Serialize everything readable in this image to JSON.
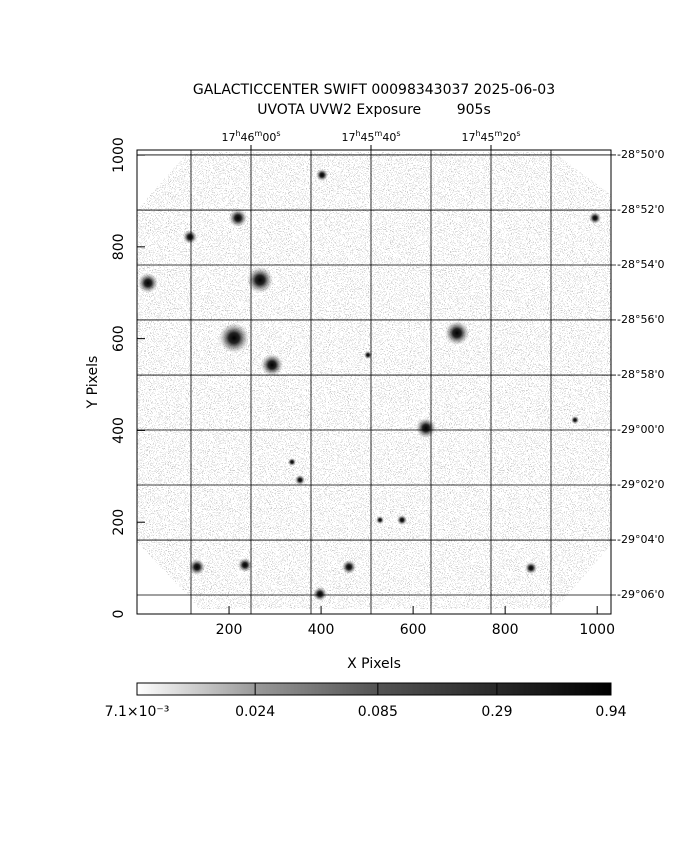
{
  "chart_data": {
    "type": "image",
    "title": "GALACTICCENTER SWIFT 00098343037 2025-06-03",
    "subtitle": "UVOTA UVW2 Exposure        905s",
    "x_label": "X Pixels",
    "y_label": "Y Pixels",
    "xlim": [
      0,
      1030
    ],
    "xticks": [
      200,
      400,
      600,
      800,
      1000
    ],
    "ylim": [
      0,
      1011
    ],
    "yticks": [
      0,
      200,
      400,
      600,
      800,
      1000
    ],
    "x2lim": [
      63979,
      63900
    ],
    "x2ticks": [
      {
        "value": 63960,
        "label": "17h46m00s"
      },
      {
        "value": 63940,
        "label": "17h45m40s"
      },
      {
        "value": 63920,
        "label": "17h45m20s"
      }
    ],
    "x2grid": [
      63970,
      63960,
      63950,
      63940,
      63930,
      63920,
      63910
    ],
    "y2lim": [
      -29.1115,
      -28.8303
    ],
    "y2ticks": [
      {
        "value": -28.8333,
        "label": "-28°50'0"
      },
      {
        "value": -28.8667,
        "label": "-28°52'0"
      },
      {
        "value": -28.9,
        "label": "-28°54'0"
      },
      {
        "value": -28.9333,
        "label": "-28°56'0"
      },
      {
        "value": -28.9667,
        "label": "-28°58'0"
      },
      {
        "value": -29.0,
        "label": "-29°00'0"
      },
      {
        "value": -29.0333,
        "label": "-29°02'0"
      },
      {
        "value": -29.0667,
        "label": "-29°04'0"
      },
      {
        "value": -29.1,
        "label": "-29°06'0"
      }
    ],
    "colorbar": {
      "lim": [
        0.0071,
        0.94
      ],
      "log": true,
      "ticks": [
        {
          "value": 0.0071,
          "label": "7.1×10⁻³"
        },
        {
          "value": 0.024,
          "label": "0.024"
        },
        {
          "value": 0.085,
          "label": "0.085"
        },
        {
          "value": 0.29,
          "label": "0.29"
        },
        {
          "value": 0.94,
          "label": "0.94"
        }
      ]
    }
  }
}
